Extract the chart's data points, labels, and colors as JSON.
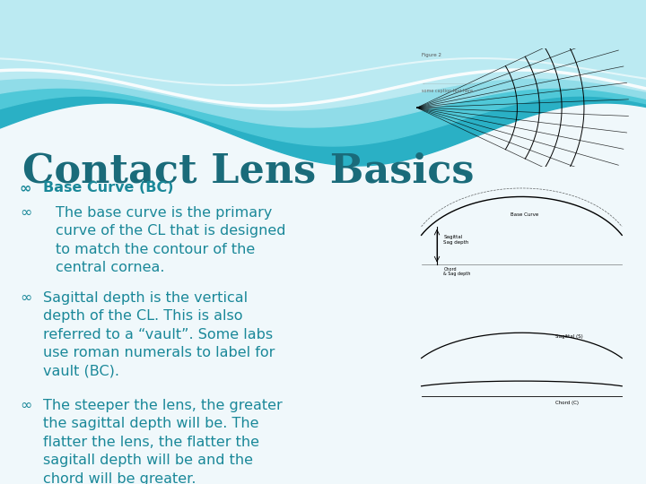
{
  "title": "Contact Lens Basics",
  "title_color": "#1a6b7a",
  "title_fontsize": 32,
  "bg_color": "#f0f8fb",
  "bullets": [
    {
      "text": "Base Curve (BC)",
      "bold": true,
      "indent": 0
    },
    {
      "text": "The base curve is the primary\ncurve of the CL that is designed\nto match the contour of the\ncentral cornea.",
      "bold": false,
      "indent": 1
    },
    {
      "text": "Sagittal depth is the vertical\ndepth of the CL. This is also\nreferred to a “vault”. Some labs\nuse roman numerals to label for\nvault (BC).",
      "bold": false,
      "indent": 1
    },
    {
      "text": "The steeper the lens, the greater\nthe sagittal depth will be. The\nflatter the lens, the flatter the\nsagitall depth will be and the\nchord will be greater.",
      "bold": false,
      "indent": 1
    }
  ],
  "text_color": "#1a8899",
  "bullet_fontsize": 11.5,
  "wave_dark": "#2ab0c5",
  "wave_mid": "#50c8d8",
  "wave_light": "#90dce8",
  "wave_lighter": "#bbeaf2",
  "white_line": "#ffffff"
}
